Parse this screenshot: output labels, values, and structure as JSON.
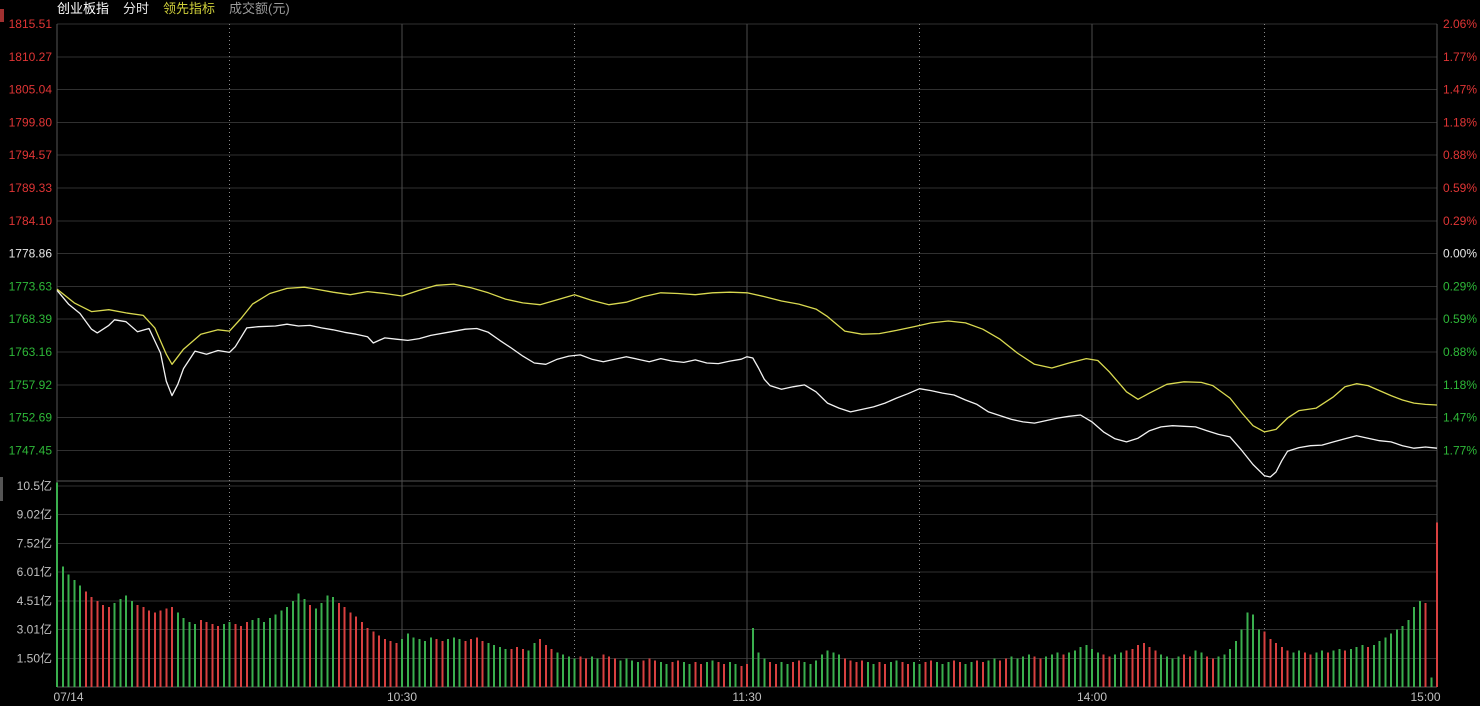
{
  "header": {
    "symbol": "创业板指",
    "mode": "分时",
    "indicator": "领先指标",
    "volume_label": "成交额(元)"
  },
  "colors": {
    "up_red": "#d84040",
    "down_green": "#3aaf4e",
    "label_red": "#e03535",
    "label_green": "#2eb838",
    "label_white": "#e8e8e8",
    "label_gray": "#c0c0c0",
    "grid": "#303030",
    "grid_bright": "#565656",
    "dotted": "#8a8a8a",
    "price_line": "#f2f2f2",
    "avg_line": "#d9d950"
  },
  "chart_data": {
    "type": "line",
    "title": "创业板指 分时 领先指标 成交额(元)",
    "prev_close": 1778.86,
    "total_minutes": 240,
    "x_axis": {
      "labels": [
        "07/14",
        "10:30",
        "11:30",
        "14:00",
        "15:00"
      ],
      "label_minutes": [
        2,
        60,
        120,
        180,
        238
      ],
      "grid_solid_minutes": [
        60,
        120,
        180
      ],
      "grid_dotted_minutes": [
        30,
        90,
        150,
        210
      ]
    },
    "y_axis_price": {
      "top": 1815.51,
      "bottom": 1747.45,
      "labels": [
        "1815.51",
        "1810.27",
        "1805.04",
        "1799.80",
        "1794.57",
        "1789.33",
        "1784.10",
        "1778.86",
        "1773.63",
        "1768.39",
        "1763.16",
        "1757.92",
        "1752.69",
        "1747.45"
      ]
    },
    "y_axis_pct": {
      "labels": [
        "2.06%",
        "1.77%",
        "1.47%",
        "1.18%",
        "0.88%",
        "0.59%",
        "0.29%",
        "0.00%",
        "0.29%",
        "0.59%",
        "0.88%",
        "1.18%",
        "1.47%",
        "1.77%"
      ]
    },
    "y_axis_volume": {
      "unit": "亿",
      "top_value": 10.52,
      "labels": [
        "10.5亿",
        "9.02亿",
        "7.52亿",
        "6.01亿",
        "4.51亿",
        "3.01亿",
        "1.50亿"
      ]
    },
    "series": [
      {
        "name": "price",
        "color_key": "price_line",
        "points": [
          [
            0,
            1773.0
          ],
          [
            2,
            1770.8
          ],
          [
            4,
            1769.3
          ],
          [
            6,
            1766.8
          ],
          [
            7,
            1766.2
          ],
          [
            9,
            1767.4
          ],
          [
            10,
            1768.3
          ],
          [
            12,
            1768.0
          ],
          [
            14,
            1766.4
          ],
          [
            16,
            1766.9
          ],
          [
            18,
            1763.0
          ],
          [
            19,
            1758.5
          ],
          [
            20,
            1756.2
          ],
          [
            21,
            1758.0
          ],
          [
            22,
            1760.5
          ],
          [
            24,
            1763.3
          ],
          [
            26,
            1762.8
          ],
          [
            28,
            1763.4
          ],
          [
            30,
            1763.1
          ],
          [
            31,
            1764.0
          ],
          [
            33,
            1767.0
          ],
          [
            35,
            1767.2
          ],
          [
            38,
            1767.3
          ],
          [
            40,
            1767.6
          ],
          [
            42,
            1767.3
          ],
          [
            44,
            1767.4
          ],
          [
            46,
            1767.0
          ],
          [
            48,
            1766.7
          ],
          [
            50,
            1766.3
          ],
          [
            52,
            1766.0
          ],
          [
            54,
            1765.6
          ],
          [
            55,
            1764.6
          ],
          [
            56,
            1765.0
          ],
          [
            57,
            1765.4
          ],
          [
            59,
            1765.2
          ],
          [
            61,
            1765.0
          ],
          [
            63,
            1765.3
          ],
          [
            65,
            1765.8
          ],
          [
            68,
            1766.3
          ],
          [
            71,
            1766.8
          ],
          [
            73,
            1766.9
          ],
          [
            75,
            1766.3
          ],
          [
            77,
            1765.0
          ],
          [
            79,
            1763.8
          ],
          [
            81,
            1762.5
          ],
          [
            83,
            1761.4
          ],
          [
            85,
            1761.2
          ],
          [
            87,
            1762.0
          ],
          [
            89,
            1762.5
          ],
          [
            91,
            1762.7
          ],
          [
            93,
            1762.0
          ],
          [
            95,
            1761.6
          ],
          [
            97,
            1762.0
          ],
          [
            99,
            1762.4
          ],
          [
            101,
            1762.0
          ],
          [
            103,
            1761.6
          ],
          [
            105,
            1762.1
          ],
          [
            107,
            1761.7
          ],
          [
            109,
            1761.5
          ],
          [
            111,
            1761.9
          ],
          [
            113,
            1761.4
          ],
          [
            115,
            1761.3
          ],
          [
            117,
            1761.7
          ],
          [
            119,
            1762.0
          ],
          [
            120,
            1762.4
          ],
          [
            121,
            1762.2
          ],
          [
            122,
            1760.6
          ],
          [
            123,
            1758.8
          ],
          [
            124,
            1757.8
          ],
          [
            126,
            1757.2
          ],
          [
            128,
            1757.6
          ],
          [
            130,
            1757.9
          ],
          [
            132,
            1756.8
          ],
          [
            134,
            1755.0
          ],
          [
            136,
            1754.2
          ],
          [
            138,
            1753.6
          ],
          [
            140,
            1754.0
          ],
          [
            142,
            1754.4
          ],
          [
            144,
            1755.0
          ],
          [
            146,
            1755.8
          ],
          [
            148,
            1756.5
          ],
          [
            150,
            1757.3
          ],
          [
            152,
            1757.0
          ],
          [
            154,
            1756.6
          ],
          [
            156,
            1756.3
          ],
          [
            158,
            1755.5
          ],
          [
            160,
            1754.8
          ],
          [
            162,
            1753.6
          ],
          [
            164,
            1753.0
          ],
          [
            166,
            1752.4
          ],
          [
            168,
            1752.0
          ],
          [
            170,
            1751.8
          ],
          [
            172,
            1752.2
          ],
          [
            174,
            1752.6
          ],
          [
            176,
            1752.9
          ],
          [
            178,
            1753.1
          ],
          [
            180,
            1752.0
          ],
          [
            182,
            1750.4
          ],
          [
            184,
            1749.3
          ],
          [
            186,
            1748.8
          ],
          [
            188,
            1749.4
          ],
          [
            190,
            1750.6
          ],
          [
            192,
            1751.2
          ],
          [
            194,
            1751.4
          ],
          [
            196,
            1751.3
          ],
          [
            198,
            1751.2
          ],
          [
            200,
            1750.6
          ],
          [
            202,
            1750.0
          ],
          [
            204,
            1749.6
          ],
          [
            206,
            1747.5
          ],
          [
            208,
            1745.2
          ],
          [
            210,
            1743.4
          ],
          [
            211,
            1743.2
          ],
          [
            212,
            1744.0
          ],
          [
            213,
            1745.8
          ],
          [
            214,
            1747.3
          ],
          [
            216,
            1747.9
          ],
          [
            218,
            1748.2
          ],
          [
            220,
            1748.3
          ],
          [
            222,
            1748.8
          ],
          [
            224,
            1749.3
          ],
          [
            226,
            1749.8
          ],
          [
            228,
            1749.4
          ],
          [
            230,
            1749.0
          ],
          [
            232,
            1748.8
          ],
          [
            234,
            1748.2
          ],
          [
            236,
            1747.8
          ],
          [
            238,
            1748.0
          ],
          [
            240,
            1747.8
          ]
        ]
      },
      {
        "name": "领先指标",
        "color_key": "avg_line",
        "points": [
          [
            0,
            1773.2
          ],
          [
            3,
            1771.0
          ],
          [
            6,
            1769.6
          ],
          [
            9,
            1769.9
          ],
          [
            12,
            1769.4
          ],
          [
            15,
            1769.0
          ],
          [
            17,
            1767.0
          ],
          [
            19,
            1762.8
          ],
          [
            20,
            1761.2
          ],
          [
            22,
            1763.6
          ],
          [
            25,
            1766.0
          ],
          [
            28,
            1766.7
          ],
          [
            30,
            1766.5
          ],
          [
            32,
            1768.5
          ],
          [
            34,
            1770.8
          ],
          [
            37,
            1772.5
          ],
          [
            40,
            1773.3
          ],
          [
            43,
            1773.5
          ],
          [
            45,
            1773.2
          ],
          [
            48,
            1772.7
          ],
          [
            51,
            1772.3
          ],
          [
            54,
            1772.8
          ],
          [
            57,
            1772.5
          ],
          [
            60,
            1772.1
          ],
          [
            63,
            1773.0
          ],
          [
            66,
            1773.8
          ],
          [
            69,
            1774.0
          ],
          [
            72,
            1773.4
          ],
          [
            75,
            1772.6
          ],
          [
            78,
            1771.6
          ],
          [
            81,
            1771.0
          ],
          [
            84,
            1770.7
          ],
          [
            87,
            1771.5
          ],
          [
            90,
            1772.3
          ],
          [
            93,
            1771.4
          ],
          [
            96,
            1770.7
          ],
          [
            99,
            1771.1
          ],
          [
            102,
            1772.0
          ],
          [
            105,
            1772.6
          ],
          [
            108,
            1772.5
          ],
          [
            111,
            1772.3
          ],
          [
            114,
            1772.6
          ],
          [
            117,
            1772.7
          ],
          [
            120,
            1772.6
          ],
          [
            123,
            1772.0
          ],
          [
            126,
            1771.3
          ],
          [
            129,
            1770.8
          ],
          [
            132,
            1770.0
          ],
          [
            134,
            1768.8
          ],
          [
            137,
            1766.5
          ],
          [
            140,
            1766.0
          ],
          [
            143,
            1766.1
          ],
          [
            146,
            1766.6
          ],
          [
            149,
            1767.2
          ],
          [
            152,
            1767.8
          ],
          [
            155,
            1768.1
          ],
          [
            158,
            1767.8
          ],
          [
            161,
            1766.8
          ],
          [
            164,
            1765.2
          ],
          [
            167,
            1763.0
          ],
          [
            170,
            1761.2
          ],
          [
            173,
            1760.6
          ],
          [
            176,
            1761.4
          ],
          [
            179,
            1762.1
          ],
          [
            181,
            1761.8
          ],
          [
            183,
            1760.0
          ],
          [
            186,
            1756.8
          ],
          [
            188,
            1755.6
          ],
          [
            190,
            1756.6
          ],
          [
            193,
            1758.0
          ],
          [
            196,
            1758.4
          ],
          [
            199,
            1758.3
          ],
          [
            201,
            1757.8
          ],
          [
            204,
            1755.8
          ],
          [
            206,
            1753.5
          ],
          [
            208,
            1751.4
          ],
          [
            210,
            1750.4
          ],
          [
            212,
            1750.8
          ],
          [
            214,
            1752.6
          ],
          [
            216,
            1753.8
          ],
          [
            219,
            1754.2
          ],
          [
            222,
            1756.0
          ],
          [
            224,
            1757.6
          ],
          [
            226,
            1758.1
          ],
          [
            228,
            1757.8
          ],
          [
            230,
            1757.0
          ],
          [
            232,
            1756.2
          ],
          [
            234,
            1755.5
          ],
          [
            236,
            1755.0
          ],
          [
            238,
            1754.8
          ],
          [
            240,
            1754.7
          ]
        ]
      }
    ],
    "volume_bars": {
      "unit": "亿",
      "encoding": "value + u(up/red) | d(down/green)",
      "values": [
        "10.7d",
        "6.3d",
        "5.9d",
        "5.6d",
        "5.3d",
        "5.0u",
        "4.7u",
        "4.5u",
        "4.3u",
        "4.2u",
        "4.4d",
        "4.6d",
        "4.8d",
        "4.5d",
        "4.3u",
        "4.2u",
        "4.0u",
        "3.9u",
        "4.0u",
        "4.1u",
        "4.2u",
        "3.9d",
        "3.6d",
        "3.4d",
        "3.3d",
        "3.5u",
        "3.4u",
        "3.3u",
        "3.2u",
        "3.3d",
        "3.4d",
        "3.3u",
        "3.2u",
        "3.4u",
        "3.5d",
        "3.6d",
        "3.4d",
        "3.6d",
        "3.8d",
        "4.0d",
        "4.2d",
        "4.5d",
        "4.9d",
        "4.6d",
        "4.3u",
        "4.1d",
        "4.4d",
        "4.8d",
        "4.7d",
        "4.4u",
        "4.2u",
        "3.9u",
        "3.7u",
        "3.4u",
        "3.1u",
        "2.9u",
        "2.7u",
        "2.5u",
        "2.4u",
        "2.3u",
        "2.5d",
        "2.8d",
        "2.6d",
        "2.5d",
        "2.4d",
        "2.6d",
        "2.5u",
        "2.4u",
        "2.5d",
        "2.6d",
        "2.5d",
        "2.4u",
        "2.5u",
        "2.6u",
        "2.4u",
        "2.3d",
        "2.2d",
        "2.1d",
        "2.0d",
        "2.0u",
        "2.1u",
        "2.0u",
        "1.9d",
        "2.3d",
        "2.5u",
        "2.2u",
        "2.0u",
        "1.8d",
        "1.7d",
        "1.6d",
        "1.5d",
        "1.6u",
        "1.5u",
        "1.6d",
        "1.5d",
        "1.7u",
        "1.6u",
        "1.5u",
        "1.4d",
        "1.5d",
        "1.4d",
        "1.3d",
        "1.4u",
        "1.5u",
        "1.4u",
        "1.3d",
        "1.2d",
        "1.3u",
        "1.4u",
        "1.3d",
        "1.2d",
        "1.3u",
        "1.2u",
        "1.3d",
        "1.4d",
        "1.3u",
        "1.2u",
        "1.3d",
        "1.2d",
        "1.1u",
        "1.2u",
        "3.1d",
        "1.8d",
        "1.5d",
        "1.3u",
        "1.2u",
        "1.3d",
        "1.2d",
        "1.3u",
        "1.4u",
        "1.3d",
        "1.2d",
        "1.4d",
        "1.7d",
        "1.9d",
        "1.8d",
        "1.7d",
        "1.5u",
        "1.4u",
        "1.3u",
        "1.4u",
        "1.3d",
        "1.2d",
        "1.3u",
        "1.2u",
        "1.3d",
        "1.4d",
        "1.3u",
        "1.2u",
        "1.3d",
        "1.2d",
        "1.3u",
        "1.4u",
        "1.3d",
        "1.2d",
        "1.3d",
        "1.4u",
        "1.3u",
        "1.2d",
        "1.3d",
        "1.4u",
        "1.3u",
        "1.4d",
        "1.5d",
        "1.4u",
        "1.5u",
        "1.6d",
        "1.5d",
        "1.6d",
        "1.7d",
        "1.6u",
        "1.5u",
        "1.6d",
        "1.7d",
        "1.8d",
        "1.7u",
        "1.8d",
        "1.9d",
        "2.1d",
        "2.2d",
        "2.0d",
        "1.8d",
        "1.7u",
        "1.6u",
        "1.7d",
        "1.8d",
        "1.9u",
        "2.0u",
        "2.2u",
        "2.3u",
        "2.1u",
        "1.9u",
        "1.7d",
        "1.6d",
        "1.5d",
        "1.6d",
        "1.7u",
        "1.6u",
        "1.9d",
        "1.8d",
        "1.6u",
        "1.5u",
        "1.6d",
        "1.7d",
        "2.0d",
        "2.4d",
        "3.0d",
        "3.9d",
        "3.8d",
        "3.0d",
        "2.9u",
        "2.5u",
        "2.3u",
        "2.1u",
        "1.9u",
        "1.8d",
        "1.9d",
        "1.8u",
        "1.7u",
        "1.8d",
        "1.9d",
        "1.8u",
        "1.9d",
        "2.0d",
        "1.9u",
        "2.0d",
        "2.1d",
        "2.2d",
        "2.1u",
        "2.2d",
        "2.4d",
        "2.6d",
        "2.8d",
        "3.0d",
        "3.2d",
        "3.5d",
        "4.2d",
        "4.5d",
        "4.4u",
        "0.5d",
        "8.6u"
      ]
    }
  }
}
